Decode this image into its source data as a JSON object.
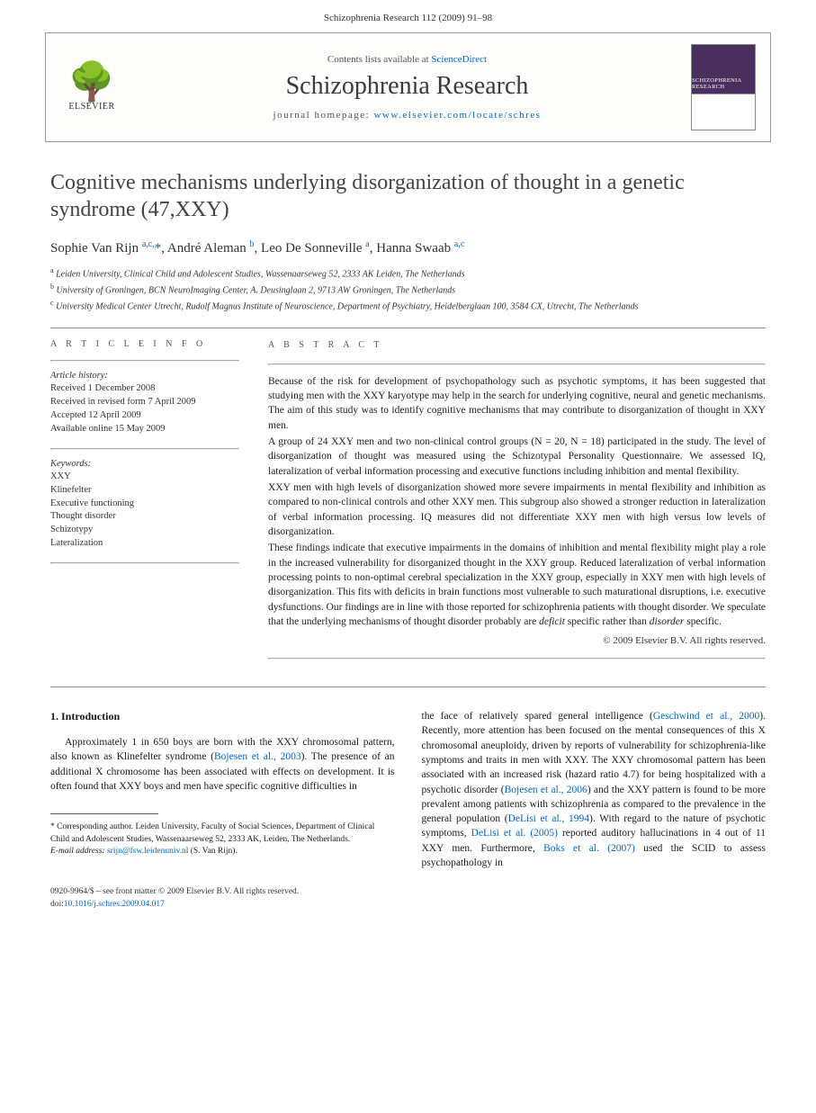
{
  "header": {
    "running_head": "Schizophrenia Research 112 (2009) 91–98"
  },
  "banner": {
    "contents_prefix": "Contents lists available at ",
    "contents_link": "ScienceDirect",
    "journal_name": "Schizophrenia Research",
    "homepage_prefix": "journal homepage: ",
    "homepage_url": "www.elsevier.com/locate/schres",
    "publisher": "ELSEVIER",
    "cover_title": "SCHIZOPHRENIA RESEARCH"
  },
  "article": {
    "title": "Cognitive mechanisms underlying disorganization of thought in a genetic syndrome (47,XXY)",
    "authors_html": "Sophie Van Rijn <sup>a,c,</sup><span class='corr'>*</span>, André Aleman <sup>b</sup>, Leo De Sonneville <sup>a</sup>, Hanna Swaab <sup>a,c</sup>",
    "affiliations": [
      "Leiden University, Clinical Child and Adolescent Studies, Wassenaarseweg 52, 2333 AK Leiden, The Netherlands",
      "University of Groningen, BCN NeuroImaging Center, A. Deusinglaan 2, 9713 AW Groningen, The Netherlands",
      "University Medical Center Utrecht, Rudolf Magnus Institute of Neuroscience, Department of Psychiatry, Heidelberglaan 100, 3584 CX, Utrecht, The Netherlands"
    ],
    "aff_markers": [
      "a",
      "b",
      "c"
    ]
  },
  "info": {
    "label": "A R T I C L E   I N F O",
    "history_hdr": "Article history:",
    "history": [
      "Received 1 December 2008",
      "Received in revised form 7 April 2009",
      "Accepted 12 April 2009",
      "Available online 15 May 2009"
    ],
    "keywords_hdr": "Keywords:",
    "keywords": [
      "XXY",
      "Klinefelter",
      "Executive functioning",
      "Thought disorder",
      "Schizotypy",
      "Lateralization"
    ]
  },
  "abstract": {
    "label": "A B S T R A C T",
    "p1": "Because of the risk for development of psychopathology such as psychotic symptoms, it has been suggested that studying men with the XXY karyotype may help in the search for underlying cognitive, neural and genetic mechanisms. The aim of this study was to identify cognitive mechanisms that may contribute to disorganization of thought in XXY men.",
    "p2": "A group of 24 XXY men and two non-clinical control groups (N = 20, N = 18) participated in the study. The level of disorganization of thought was measured using the Schizotypal Personality Questionnaire. We assessed IQ, lateralization of verbal information processing and executive functions including inhibition and mental flexibility.",
    "p3": "XXY men with high levels of disorganization showed more severe impairments in mental flexibility and inhibition as compared to non-clinical controls and other XXY men. This subgroup also showed a stronger reduction in lateralization of verbal information processing. IQ measures did not differentiate XXY men with high versus low levels of disorganization.",
    "p4_pre": "These findings indicate that executive impairments in the domains of inhibition and mental flexibility might play a role in the increased vulnerability for disorganized thought in the XXY group. Reduced lateralization of verbal information processing points to non-optimal cerebral specialization in the XXY group, especially in XXY men with high levels of disorganization. This fits with deficits in brain functions most vulnerable to such maturational disruptions, i.e. executive dysfunctions. Our findings are in line with those reported for schizophrenia patients with thought disorder. We speculate that the underlying mechanisms of thought disorder probably are ",
    "p4_it1": "deficit",
    "p4_mid": " specific rather than ",
    "p4_it2": "disorder",
    "p4_post": " specific.",
    "copyright": "© 2009 Elsevier B.V. All rights reserved."
  },
  "body": {
    "section_heading": "1. Introduction",
    "col1_pre": "Approximately 1 in 650 boys are born with the XXY chromosomal pattern, also known as Klinefelter syndrome (",
    "col1_link": "Bojesen et al., 2003",
    "col1_post": "). The presence of an additional X chromosome has been associated with effects on development. It is often found that XXY boys and men have specific cognitive difficulties in",
    "corr_label": "* Corresponding author. Leiden University, Faculty of Social Sciences, Department of Clinical Child and Adolescent Studies, Wassenaarseweg 52, 2333 AK, Leiden, The Netherlands.",
    "email_label": "E-mail address:",
    "email": "srijn@fsw.leidenuniv.nl",
    "email_paren": "(S. Van Rijn).",
    "col2_a": "the face of relatively spared general intelligence (",
    "col2_link1": "Geschwind et al., 2000",
    "col2_b": "). Recently, more attention has been focused on the mental consequences of this X chromosomal aneuploidy, driven by reports of vulnerability for schizophrenia-like symptoms and traits in men with XXY. The XXY chromosomal pattern has been associated with an increased risk (hazard ratio 4.7) for being hospitalized with a psychotic disorder (",
    "col2_link2": "Bojesen et al., 2006",
    "col2_c": ") and the XXY pattern is found to be more prevalent among patients with schizophrenia as compared to the prevalence in the general population (",
    "col2_link3": "DeLisi et al., 1994",
    "col2_d": "). With regard to the nature of psychotic symptoms, ",
    "col2_link4": "DeLisi et al. (2005)",
    "col2_e": " reported auditory hallucinations in 4 out of 11 XXY men. Furthermore, ",
    "col2_link5": "Boks et al. (2007)",
    "col2_f": " used the SCID to assess psychopathology in"
  },
  "footer": {
    "issn_line": "0920-9964/$ – see front matter © 2009 Elsevier B.V. All rights reserved.",
    "doi_prefix": "doi:",
    "doi": "10.1016/j.schres.2009.04.017"
  }
}
